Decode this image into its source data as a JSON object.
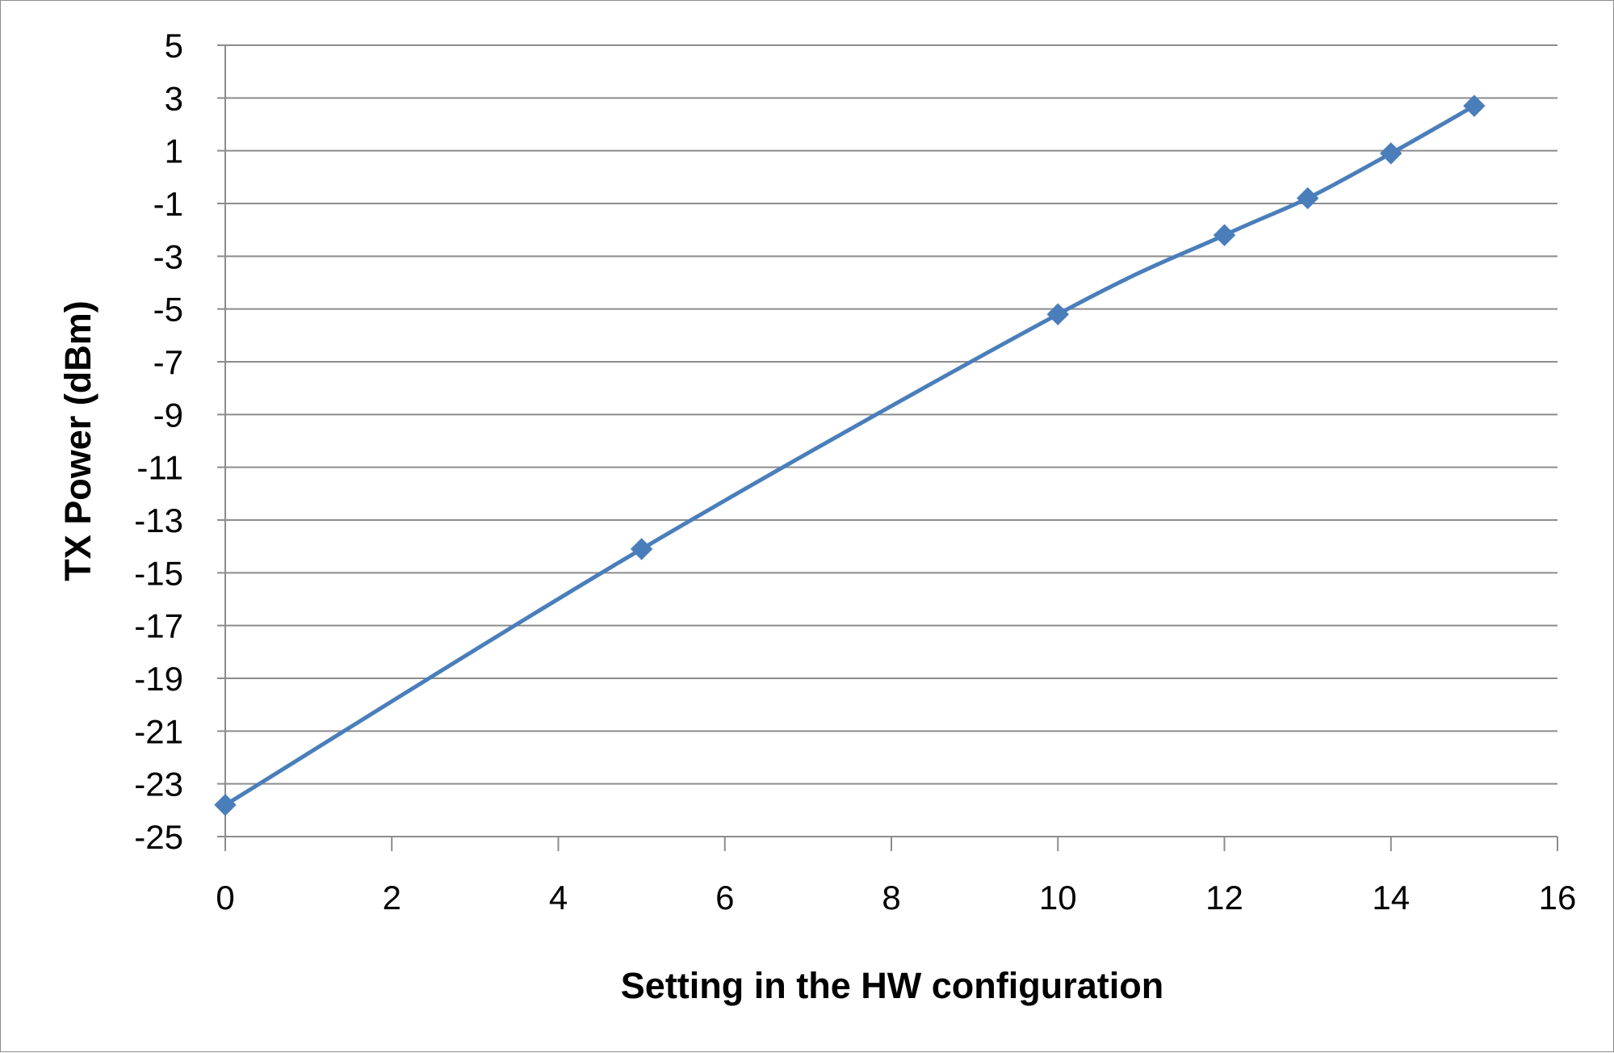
{
  "chart_data": {
    "type": "line",
    "title": "",
    "xlabel": "Setting in the HW configuration",
    "ylabel": "TX Power (dBm)",
    "xlim": [
      0,
      16
    ],
    "ylim": [
      -25,
      5
    ],
    "xticks": [
      0,
      2,
      4,
      6,
      8,
      10,
      12,
      14,
      16
    ],
    "yticks": [
      5,
      3,
      1,
      -1,
      -3,
      -5,
      -7,
      -9,
      -11,
      -13,
      -15,
      -17,
      -19,
      -21,
      -23,
      -25
    ],
    "grid": "horizontal",
    "legend": "none",
    "series": [
      {
        "color": "#4a7ebb",
        "marker": "diamond",
        "smooth": true,
        "points": [
          {
            "x": 0,
            "y": -23.8
          },
          {
            "x": 5,
            "y": -14.1
          },
          {
            "x": 10,
            "y": -5.2
          },
          {
            "x": 12,
            "y": -2.2
          },
          {
            "x": 13,
            "y": -0.8
          },
          {
            "x": 14,
            "y": 0.9
          },
          {
            "x": 15,
            "y": 2.7
          }
        ]
      }
    ]
  }
}
